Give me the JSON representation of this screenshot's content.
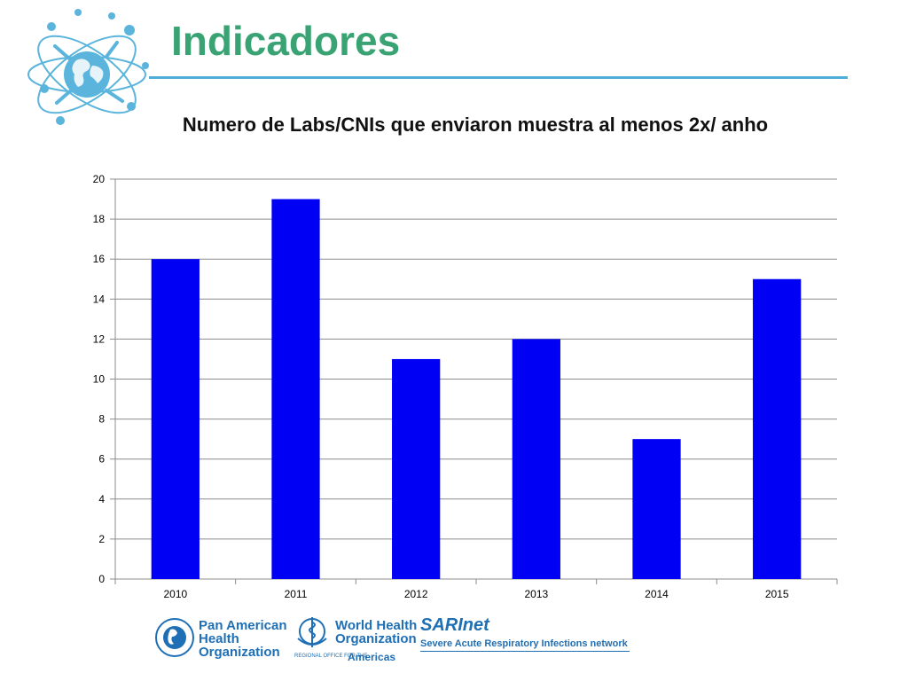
{
  "slide": {
    "title": "Indicadores",
    "accent_color": "#3aa374",
    "rule_color": "#4eaed8",
    "logo_icon": "globe-network-icon"
  },
  "chart_data": {
    "type": "bar",
    "title": "Numero de Labs/CNIs que enviaron muestra al menos 2x/ anho",
    "categories": [
      "2010",
      "2011",
      "2012",
      "2013",
      "2014",
      "2015"
    ],
    "values": [
      16,
      19,
      11,
      12,
      7,
      15
    ],
    "ylim": [
      0,
      20
    ],
    "yticks": [
      0,
      2,
      4,
      6,
      8,
      10,
      12,
      14,
      16,
      18,
      20
    ],
    "grid": true,
    "legend": "none",
    "bar_color": "#0000f5"
  },
  "footer": {
    "paho": {
      "line1": "Pan American",
      "line2": "Health",
      "line3": "Organization",
      "seal_text": "PRO SALVTE NOVI MVNDI",
      "icon": "paho-seal-icon"
    },
    "who": {
      "line1": "World Health",
      "line2": "Organization",
      "sub": "REGIONAL OFFICE FOR THE",
      "americas": "Americas",
      "icon": "who-emblem-icon"
    },
    "sarinet": {
      "name": "SARInet",
      "tagline": "Severe Acute Respiratory Infections network"
    }
  }
}
